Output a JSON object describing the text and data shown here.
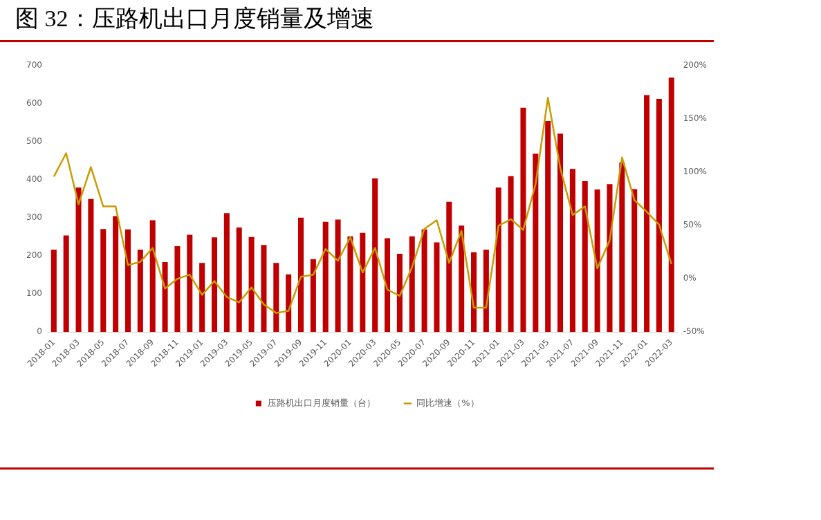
{
  "chart_data": {
    "type": "bar",
    "title": "图 32：压路机出口月度销量及增速",
    "categories": [
      "2018-01",
      null,
      "2018-03",
      null,
      "2018-05",
      null,
      "2018-07",
      null,
      "2018-09",
      null,
      "2018-11",
      null,
      "2019-01",
      null,
      "2019-03",
      null,
      "2019-05",
      null,
      "2019-07",
      null,
      "2019-09",
      null,
      "2019-11",
      null,
      "2020-01",
      null,
      "2020-03",
      null,
      "2020-05",
      null,
      "2020-07",
      null,
      "2020-09",
      null,
      "2020-11",
      null,
      "2021-01",
      null,
      "2021-03",
      null,
      "2021-05",
      null,
      "2021-07",
      null,
      "2021-09",
      null,
      "2021-11",
      null,
      "2022-01",
      null,
      "2022-03"
    ],
    "series": [
      {
        "name": "压路机出口月度销量（台）",
        "color": "#c00000",
        "values": [
          217,
          254,
          380,
          350,
          271,
          305,
          270,
          217,
          294,
          184,
          226,
          256,
          182,
          249,
          313,
          275,
          250,
          229,
          182,
          152,
          301,
          192,
          290,
          296,
          252,
          261,
          404,
          247,
          206,
          252,
          270,
          236,
          343,
          280,
          210,
          217,
          380,
          410,
          590,
          469,
          555,
          522,
          429,
          397,
          375,
          389,
          446,
          376,
          623,
          613,
          669
        ]
      },
      {
        "name": "同比增速（%）",
        "type": "line",
        "axis": "y2",
        "color": "#c89b00",
        "values": [
          96,
          118,
          70,
          105,
          68,
          68,
          13,
          16,
          29,
          -9,
          0,
          4,
          -15,
          -2,
          -17,
          -22,
          -8,
          -24,
          -32,
          -30,
          2,
          4,
          28,
          17,
          39,
          6,
          29,
          -10,
          -16,
          11,
          47,
          55,
          15,
          45,
          -27,
          -27,
          50,
          56,
          46,
          89,
          170,
          104,
          60,
          68,
          10,
          36,
          114,
          74,
          63,
          51,
          14
        ]
      }
    ],
    "ylim": [
      0,
      700
    ],
    "yticks": [
      0,
      100,
      200,
      300,
      400,
      500,
      600,
      700
    ],
    "y2lim": [
      -50,
      200
    ],
    "y2ticks": [
      {
        "value": -50,
        "label": "-50%"
      },
      {
        "value": 0,
        "label": "0%"
      },
      {
        "value": 50,
        "label": "50%"
      },
      {
        "value": 100,
        "label": "100%"
      },
      {
        "value": 150,
        "label": "150%"
      },
      {
        "value": 200,
        "label": "200%"
      }
    ],
    "grid": false,
    "legend": "bottom",
    "marker": "none",
    "line_style": "solid"
  }
}
